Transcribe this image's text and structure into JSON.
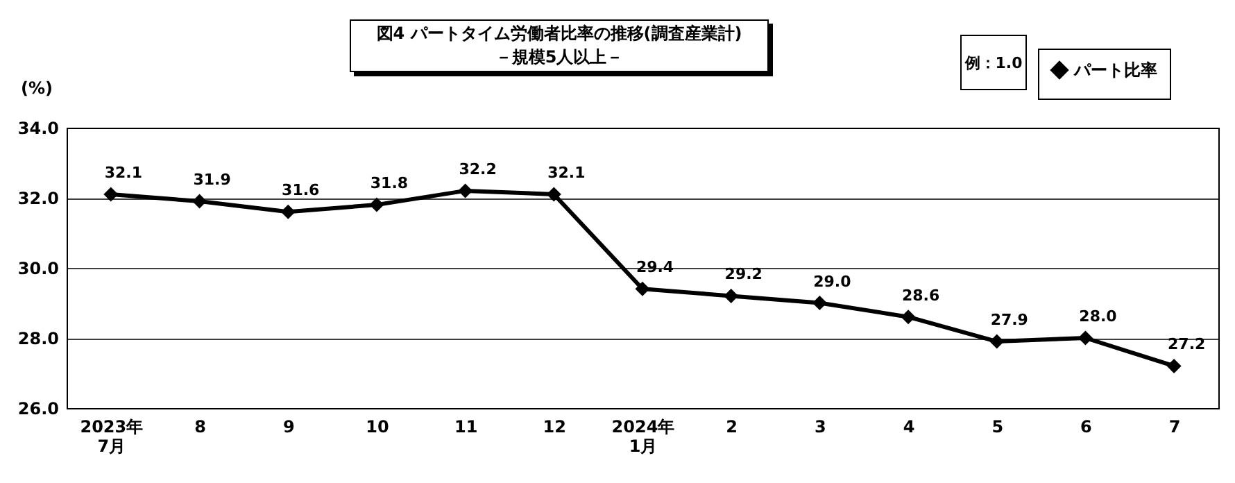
{
  "chart_data": {
    "type": "line",
    "title": "図4 パートタイム労働者比率の推移(調査産業計)",
    "subtitle": "－規模5人以上－",
    "ylabel": "(%)",
    "annotations": [
      "例：1.0"
    ],
    "categories": [
      "2023年\n7月",
      "8",
      "9",
      "10",
      "11",
      "12",
      "2024年\n1月",
      "2",
      "3",
      "4",
      "5",
      "6",
      "7"
    ],
    "series": [
      {
        "name": "パート比率",
        "color": "#000000",
        "values": [
          32.1,
          31.9,
          31.6,
          31.8,
          32.2,
          32.1,
          29.4,
          29.2,
          29.0,
          28.6,
          27.9,
          28.0,
          27.2
        ],
        "value_labels": [
          "32.1",
          "31.9",
          "31.6",
          "31.8",
          "32.2",
          "32.1",
          "29.4",
          "29.2",
          "29.0",
          "28.6",
          "27.9",
          "28.0",
          "27.2"
        ]
      }
    ],
    "ylim": [
      26,
      34
    ],
    "yticks": [
      {
        "value": 26,
        "label": "26.0"
      },
      {
        "value": 28,
        "label": "28.0"
      },
      {
        "value": 30,
        "label": "30.0"
      },
      {
        "value": 32,
        "label": "32.0"
      },
      {
        "value": 34,
        "label": "34.0"
      }
    ],
    "grid": "y",
    "legend": "top right",
    "marker": "diamond",
    "line_style": "solid"
  }
}
